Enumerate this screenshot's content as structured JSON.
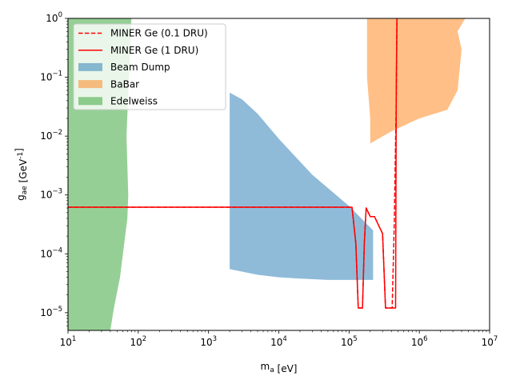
{
  "chart_data": {
    "type": "area",
    "title": "",
    "xlabel": "m_a [eV]",
    "ylabel": "g_ae [GeV^-1]",
    "xscale": "log",
    "yscale": "log",
    "xlim": [
      10,
      10000000
    ],
    "ylim": [
      5e-06,
      1
    ],
    "x_ticks": [
      {
        "value": 10,
        "base": "10",
        "exp": "1"
      },
      {
        "value": 100,
        "base": "10",
        "exp": "2"
      },
      {
        "value": 1000,
        "base": "10",
        "exp": "3"
      },
      {
        "value": 10000,
        "base": "10",
        "exp": "4"
      },
      {
        "value": 100000,
        "base": "10",
        "exp": "5"
      },
      {
        "value": 1000000,
        "base": "10",
        "exp": "6"
      },
      {
        "value": 10000000,
        "base": "10",
        "exp": "7"
      }
    ],
    "y_ticks": [
      {
        "value": 1e-05,
        "base": "10",
        "exp": "−5"
      },
      {
        "value": 0.0001,
        "base": "10",
        "exp": "−4"
      },
      {
        "value": 0.001,
        "base": "10",
        "exp": "−3"
      },
      {
        "value": 0.01,
        "base": "10",
        "exp": "−2"
      },
      {
        "value": 0.1,
        "base": "10",
        "exp": "−1"
      },
      {
        "value": 1,
        "base": "10",
        "exp": "0"
      }
    ],
    "legend_position": "top-left",
    "regions": [
      {
        "name": "Beam Dump",
        "color": "#1f77b4",
        "alpha": 0.5,
        "polygon": [
          [
            2000,
            0.055
          ],
          [
            3000,
            0.042
          ],
          [
            5000,
            0.024
          ],
          [
            10000,
            0.009
          ],
          [
            30000,
            0.0022
          ],
          [
            100000,
            0.00065
          ],
          [
            220000,
            0.00025
          ],
          [
            220000,
            3.6e-05
          ],
          [
            100000,
            3.6e-05
          ],
          [
            50000,
            3.6e-05
          ],
          [
            20000,
            3.8e-05
          ],
          [
            10000,
            4e-05
          ],
          [
            5000,
            4.4e-05
          ],
          [
            2000,
            5.5e-05
          ]
        ]
      },
      {
        "name": "BaBar",
        "color": "#ff7f0e",
        "alpha": 0.5,
        "polygon": [
          [
            180000,
            1
          ],
          [
            4500000,
            1
          ],
          [
            3500000,
            0.6
          ],
          [
            4000000,
            0.3
          ],
          [
            3500000,
            0.06
          ],
          [
            2500000,
            0.028
          ],
          [
            1000000,
            0.02
          ],
          [
            400000,
            0.012
          ],
          [
            200000,
            0.0075
          ],
          [
            200000,
            0.02
          ],
          [
            180000,
            0.1
          ]
        ]
      },
      {
        "name": "Edelweiss",
        "color": "#2ca02c",
        "alpha": 0.5,
        "polygon": [
          [
            10,
            1
          ],
          [
            80,
            1
          ],
          [
            68,
            0.01
          ],
          [
            72,
            0.001
          ],
          [
            70,
            0.0004
          ],
          [
            55,
            4e-05
          ],
          [
            45,
            1.2e-05
          ],
          [
            40,
            5e-06
          ],
          [
            10,
            5e-06
          ]
        ]
      }
    ],
    "series": [
      {
        "name": "MINER Ge (0.1 DRU)",
        "color": "#ff0000",
        "style": "dashed",
        "points": [
          [
            10,
            0.00062
          ],
          [
            110000,
            0.00062
          ],
          [
            125000,
            0.00015
          ],
          [
            135000,
            1.2e-05
          ],
          [
            155000,
            1.2e-05
          ],
          [
            165000,
            0.00015
          ],
          [
            175000,
            0.0006
          ],
          [
            200000,
            0.00043
          ],
          [
            230000,
            0.00043
          ],
          [
            300000,
            0.00022
          ],
          [
            330000,
            1.2e-05
          ],
          [
            410000,
            1.2e-05
          ],
          [
            440000,
            0.0003
          ],
          [
            470000,
            0.05
          ],
          [
            480000,
            1
          ]
        ]
      },
      {
        "name": "MINER Ge (1 DRU)",
        "color": "#ff0000",
        "style": "solid",
        "points": [
          [
            10,
            0.00062
          ],
          [
            110000,
            0.00062
          ],
          [
            125000,
            0.00015
          ],
          [
            135000,
            1.2e-05
          ],
          [
            155000,
            1.2e-05
          ],
          [
            165000,
            0.00015
          ],
          [
            175000,
            0.0006
          ],
          [
            200000,
            0.00043
          ],
          [
            230000,
            0.00043
          ],
          [
            300000,
            0.00022
          ],
          [
            330000,
            1.2e-05
          ],
          [
            460000,
            1.2e-05
          ],
          [
            470000,
            0.1
          ],
          [
            480000,
            1
          ]
        ]
      }
    ],
    "legend": [
      {
        "label": "MINER Ge (0.1 DRU)",
        "kind": "dashed-line",
        "color": "#ff0000"
      },
      {
        "label": "MINER Ge (1 DRU)",
        "kind": "solid-line",
        "color": "#ff0000"
      },
      {
        "label": "Beam Dump",
        "kind": "patch",
        "color": "#1f77b4"
      },
      {
        "label": "BaBar",
        "kind": "patch",
        "color": "#ff7f0e"
      },
      {
        "label": "Edelweiss",
        "kind": "patch",
        "color": "#2ca02c"
      }
    ]
  }
}
